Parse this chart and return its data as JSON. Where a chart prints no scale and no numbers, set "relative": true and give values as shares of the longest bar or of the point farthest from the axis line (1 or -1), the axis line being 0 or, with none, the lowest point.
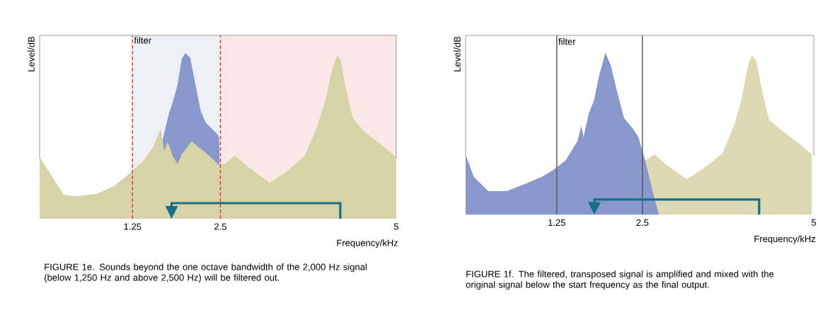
{
  "chart_data": [
    {
      "type": "area",
      "relative": true,
      "xlabel": "Frequency/kHz",
      "ylabel": "Level/dB",
      "xlim": [
        -0.07,
        5
      ],
      "xticks": [
        1.25,
        2.5,
        5
      ],
      "series": [
        {
          "color": "#8897cc",
          "x": [
            1.68,
            1.77,
            1.82,
            1.89,
            1.95,
            2.0,
            2.07,
            2.16,
            2.22,
            2.29,
            2.46,
            2.48,
            2.49
          ],
          "values": [
            0.48,
            0.637,
            0.7,
            0.808,
            0.964,
            1.0,
            0.972,
            0.779,
            0.651,
            0.58,
            0.509,
            0.49,
            0.326
          ]
        },
        {
          "color": "#d6d3a8",
          "x": [
            -0.07,
            0.07,
            0.27,
            0.44,
            0.74,
            0.98,
            1.21,
            1.41,
            1.55,
            1.65,
            1.7,
            1.75,
            1.82,
            1.89,
            1.95,
            2.09,
            2.22,
            2.36,
            2.48,
            2.56,
            2.71,
            2.9,
            3.2,
            3.43,
            3.7,
            3.87,
            3.99,
            4.09,
            4.16,
            4.21,
            4.28,
            4.38,
            4.55,
            4.78,
            5.0
          ],
          "values": [
            0.373,
            0.28,
            0.145,
            0.135,
            0.15,
            0.195,
            0.273,
            0.352,
            0.437,
            0.544,
            0.41,
            0.466,
            0.38,
            0.33,
            0.39,
            0.466,
            0.423,
            0.373,
            0.326,
            0.33,
            0.38,
            0.31,
            0.217,
            0.28,
            0.38,
            0.551,
            0.708,
            0.907,
            0.986,
            0.957,
            0.793,
            0.608,
            0.523,
            0.45,
            0.373
          ]
        }
      ],
      "bands": [
        {
          "axis": "x",
          "from": 1.25,
          "to": 2.5,
          "label": "filter",
          "color": "#eef0f6"
        },
        {
          "axis": "x",
          "from": 2.5,
          "to": 5,
          "color": "#f9e8e6"
        }
      ],
      "ref_lines": [
        {
          "axis": "x",
          "value": 1.25,
          "color": "#e8302c",
          "line_style": "dashed"
        },
        {
          "axis": "x",
          "value": 2.5,
          "color": "#e8302c",
          "line_style": "dashed"
        }
      ],
      "annotations": [
        "FIGURE 1e. Sounds beyond the one octave bandwidth of the 2,000 Hz signal (below 1,250 Hz and above 2,500 Hz) will be filtered out."
      ]
    },
    {
      "type": "area",
      "relative": true,
      "xlabel": "Frequency/kHz",
      "ylabel": "Level/dB",
      "xlim": [
        -0.08,
        5
      ],
      "xticks": [
        1.25,
        2.5,
        5
      ],
      "series": [
        {
          "color": "#ddd9b3",
          "x": [
            2.54,
            2.68,
            2.85,
            3.15,
            3.39,
            3.67,
            3.84,
            3.94,
            4.04,
            4.1,
            4.16,
            4.25,
            4.35,
            4.56,
            4.79,
            4.97
          ],
          "values": [
            0.336,
            0.372,
            0.307,
            0.219,
            0.285,
            0.38,
            0.555,
            0.7,
            0.92,
            0.985,
            0.95,
            0.759,
            0.584,
            0.511,
            0.438,
            0.372
          ]
        },
        {
          "color": "#8897cc",
          "x": [
            -0.08,
            0.04,
            0.25,
            0.52,
            0.79,
            1.03,
            1.2,
            1.38,
            1.55,
            1.61,
            1.64,
            1.72,
            1.79,
            1.87,
            1.96,
            2.04,
            2.13,
            2.23,
            2.37,
            2.44,
            2.54,
            2.64,
            2.74
          ],
          "values": [
            0.372,
            0.233,
            0.146,
            0.146,
            0.19,
            0.233,
            0.277,
            0.336,
            0.452,
            0.548,
            0.48,
            0.628,
            0.7,
            0.861,
            1.0,
            0.92,
            0.759,
            0.598,
            0.526,
            0.48,
            0.336,
            0.16,
            0
          ]
        }
      ],
      "ref_lines": [
        {
          "axis": "x",
          "value": 1.25,
          "color": "#555555",
          "line_style": "solid"
        },
        {
          "axis": "x",
          "value": 2.5,
          "color": "#555555",
          "line_style": "solid"
        }
      ],
      "annotations": [
        {
          "text": "filter",
          "x": 1.25,
          "y": 1.1
        },
        "FIGURE 1f. The filtered, transposed signal is amplified and mixed with the original signal below the start frequency as the final output."
      ]
    }
  ]
}
